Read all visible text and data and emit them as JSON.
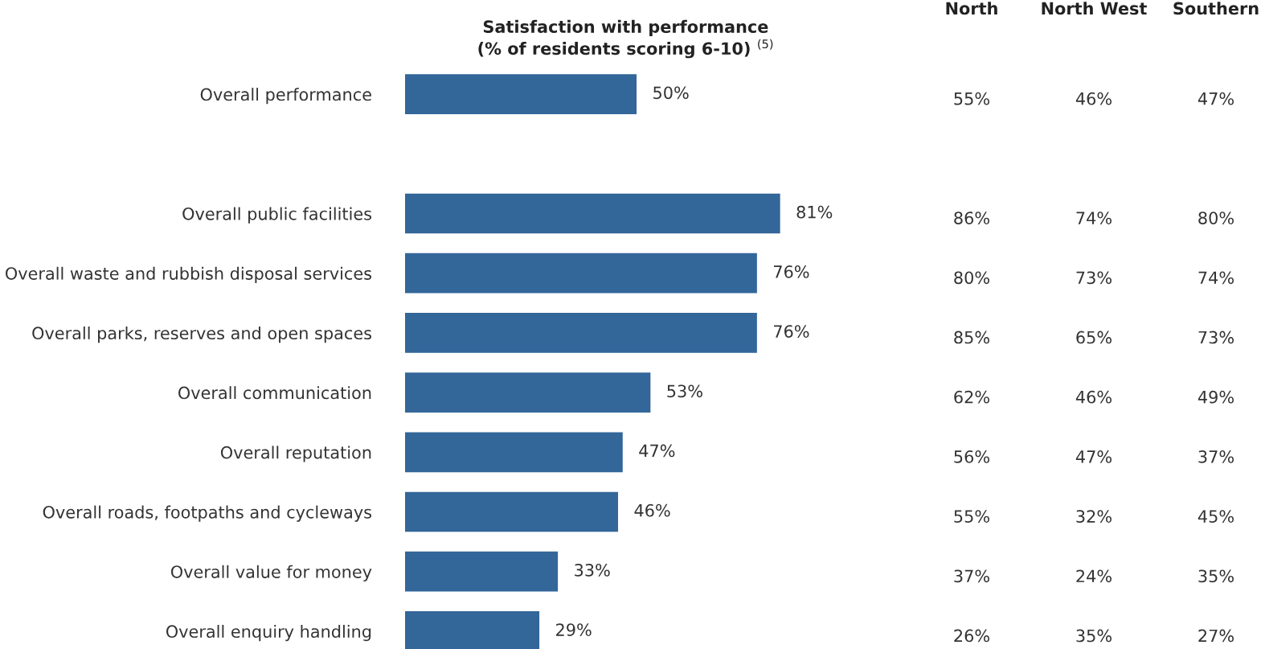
{
  "chart_data": [
    {
      "type": "bar",
      "orientation": "horizontal",
      "title": "Satisfaction with performance\n(% of residents scoring 6-10) $^{(5)}$",
      "categories": [
        "Overall performance",
        null,
        "Overall public facilities",
        "Overall waste and rubbish disposal services",
        "Overall parks, reserves and open spaces",
        "Overall communication",
        "Overall reputation",
        "Overall roads, footpaths and cycleways",
        "Overall value for money",
        "Overall enquiry handling"
      ],
      "values": [
        50,
        null,
        81,
        76,
        76,
        53,
        47,
        46,
        33,
        29
      ],
      "value_labels": [
        "50%",
        null,
        "81%",
        "76%",
        "76%",
        "53%",
        "47%",
        "46%",
        "33%",
        "29%"
      ],
      "color": "#336699",
      "tick_labels": "y"
    },
    {
      "type": "other",
      "categories": [
        "North",
        "North West",
        "Southern"
      ],
      "cell_labels": [
        [
          "55%",
          "46%",
          "47%"
        ],
        [
          null,
          null,
          null
        ],
        [
          "86%",
          "74%",
          "80%"
        ],
        [
          "80%",
          "73%",
          "74%"
        ],
        [
          "85%",
          "65%",
          "73%"
        ],
        [
          "62%",
          "46%",
          "49%"
        ],
        [
          "56%",
          "47%",
          "37%"
        ],
        [
          "55%",
          "32%",
          "45%"
        ],
        [
          "37%",
          "24%",
          "35%"
        ],
        [
          "26%",
          "35%",
          "27%"
        ]
      ]
    }
  ]
}
